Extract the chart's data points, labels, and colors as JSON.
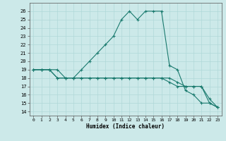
{
  "title": "",
  "xlabel": "Humidex (Indice chaleur)",
  "ylabel": "",
  "xlim": [
    -0.5,
    23.5
  ],
  "ylim": [
    13.5,
    27
  ],
  "yticks": [
    14,
    15,
    16,
    17,
    18,
    19,
    20,
    21,
    22,
    23,
    24,
    25,
    26
  ],
  "xticks": [
    0,
    1,
    2,
    3,
    4,
    5,
    6,
    7,
    8,
    9,
    10,
    11,
    12,
    13,
    14,
    15,
    16,
    17,
    18,
    19,
    20,
    21,
    22,
    23
  ],
  "bg_color": "#cce9e9",
  "grid_color": "#b0d8d8",
  "line_color": "#1a7a6e",
  "line1": {
    "x": [
      0,
      1,
      2,
      3,
      4,
      5,
      6,
      7,
      8,
      9,
      10,
      11,
      12,
      13,
      14,
      15,
      16,
      17,
      18,
      19,
      20,
      21,
      22,
      23
    ],
    "y": [
      19,
      19,
      19,
      19,
      18,
      18,
      19,
      20,
      21,
      22,
      23,
      25,
      26,
      25,
      26,
      26,
      26,
      19.5,
      19,
      16.5,
      16,
      15,
      15,
      14.5
    ]
  },
  "line2": {
    "x": [
      0,
      1,
      2,
      3,
      4,
      5,
      6,
      7,
      8,
      9,
      10,
      11,
      12,
      13,
      14,
      15,
      16,
      17,
      18,
      19,
      20,
      21,
      22,
      23
    ],
    "y": [
      19,
      19,
      19,
      18,
      18,
      18,
      18,
      18,
      18,
      18,
      18,
      18,
      18,
      18,
      18,
      18,
      18,
      18,
      17.5,
      17,
      17,
      17,
      15.5,
      14.5
    ]
  },
  "line3": {
    "x": [
      0,
      1,
      2,
      3,
      4,
      5,
      6,
      7,
      8,
      9,
      10,
      11,
      12,
      13,
      14,
      15,
      16,
      17,
      18,
      19,
      20,
      21,
      22,
      23
    ],
    "y": [
      19,
      19,
      19,
      18,
      18,
      18,
      18,
      18,
      18,
      18,
      18,
      18,
      18,
      18,
      18,
      18,
      18,
      17.5,
      17,
      17,
      17,
      17,
      15,
      14.5
    ]
  }
}
